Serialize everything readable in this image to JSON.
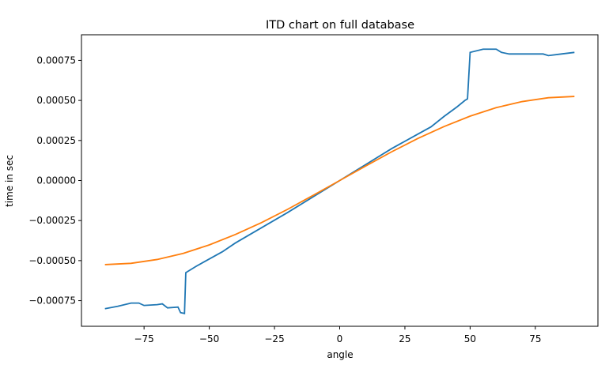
{
  "chart_data": {
    "type": "line",
    "title": "ITD chart on full database",
    "x_label": "angle",
    "y_label": "time in sec",
    "xlim": [
      -99,
      99
    ],
    "ylim": [
      -0.00091,
      0.00091
    ],
    "grid": false,
    "xticks": [
      {
        "value": -75,
        "label": "−75"
      },
      {
        "value": -50,
        "label": "−50"
      },
      {
        "value": -25,
        "label": "−25"
      },
      0,
      25,
      50,
      75
    ],
    "yticks": [
      {
        "value": -0.00075,
        "label": "−0.00075"
      },
      {
        "value": -0.0005,
        "label": "−0.00050"
      },
      {
        "value": -0.00025,
        "label": "−0.00025"
      },
      {
        "value": 0,
        "label": "0.00000"
      },
      {
        "value": 0.00025,
        "label": "0.00025"
      },
      {
        "value": 0.0005,
        "label": "0.00050"
      },
      {
        "value": 0.00075,
        "label": "0.00075"
      }
    ],
    "series": [
      {
        "color": "#1f77b4",
        "x": [
          -90,
          -85,
          -80,
          -77,
          -75,
          -70,
          -68,
          -66,
          -62,
          -61,
          -59.5,
          -59,
          -55,
          -50,
          -45,
          -40,
          -30,
          -20,
          -10,
          0,
          10,
          20,
          30,
          35,
          40,
          45,
          48,
          49,
          50,
          55,
          60,
          62,
          65,
          70,
          75,
          78,
          80,
          85,
          90
        ],
        "values": [
          -0.0008,
          -0.000785,
          -0.000765,
          -0.000765,
          -0.00078,
          -0.000775,
          -0.00077,
          -0.000795,
          -0.00079,
          -0.000825,
          -0.00083,
          -0.000575,
          -0.000535,
          -0.00049,
          -0.000445,
          -0.00039,
          -0.000295,
          -0.0002,
          -0.0001,
          0,
          0.0001,
          0.0002,
          0.00029,
          0.000335,
          0.0004,
          0.00046,
          0.0005,
          0.00051,
          0.0008,
          0.00082,
          0.00082,
          0.0008,
          0.00079,
          0.00079,
          0.00079,
          0.00079,
          0.00078,
          0.00079,
          0.0008
        ]
      },
      {
        "color": "#ff7f0e",
        "x": [
          -90,
          -80,
          -70,
          -60,
          -50,
          -40,
          -30,
          -20,
          -10,
          0,
          10,
          20,
          30,
          40,
          50,
          60,
          70,
          80,
          90
        ],
        "values": [
          -0.000525,
          -0.000517,
          -0.000493,
          -0.000455,
          -0.000402,
          -0.000337,
          -0.000263,
          -0.00018,
          -9.1e-05,
          0,
          9.1e-05,
          0.00018,
          0.000263,
          0.000337,
          0.000402,
          0.000455,
          0.000493,
          0.000517,
          0.000525
        ]
      }
    ]
  }
}
